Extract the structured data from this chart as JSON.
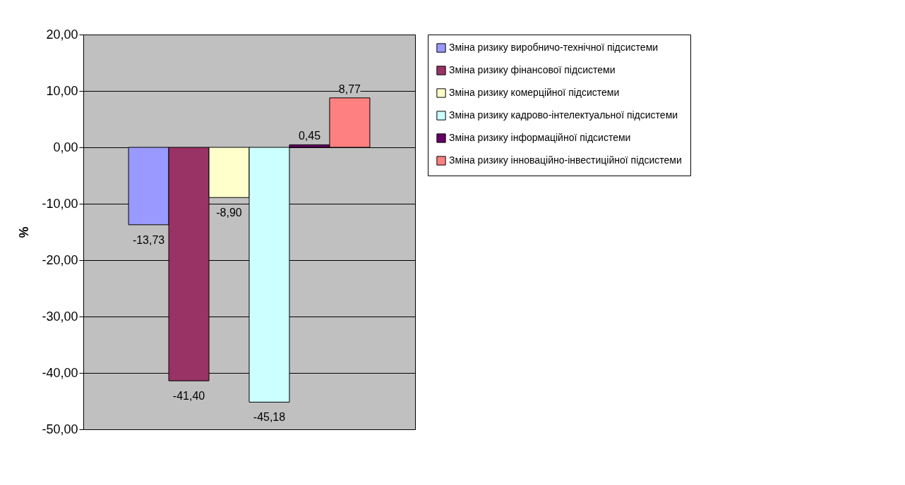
{
  "chart_data": {
    "type": "bar",
    "ylabel": "%",
    "categories": [
      null
    ],
    "series": [
      {
        "name": "Зміна ризику виробничо-технічної підсистеми",
        "color": "#9999ff",
        "values": [
          -13.73
        ],
        "value_labels": [
          "-13,73"
        ]
      },
      {
        "name": "Зміна ризику фінансової підсистеми",
        "color": "#993366",
        "values": [
          -41.4
        ],
        "value_labels": [
          "-41,40"
        ]
      },
      {
        "name": "Зміна ризику комерційної підсистеми",
        "color": "#ffffcc",
        "values": [
          -8.9
        ],
        "value_labels": [
          "-8,90"
        ]
      },
      {
        "name": "Зміна ризику кадрово-інтелектуальної підсистеми",
        "color": "#ccffff",
        "values": [
          -45.18
        ],
        "value_labels": [
          "-45,18"
        ]
      },
      {
        "name": "Зміна ризику інформаційної підсистеми",
        "color": "#660066",
        "values": [
          0.45
        ],
        "value_labels": [
          "0,45"
        ]
      },
      {
        "name": "Зміна ризику інноваційно-інвестиційної підсистеми",
        "color": "#ff8080",
        "values": [
          8.77
        ],
        "value_labels": [
          "8,77"
        ]
      }
    ],
    "ylim": [
      -50,
      20
    ],
    "yticks": [
      {
        "value": -50,
        "label": "-50,00"
      },
      {
        "value": -40,
        "label": "-40,00"
      },
      {
        "value": -30,
        "label": "-30,00"
      },
      {
        "value": -20,
        "label": "-20,00"
      },
      {
        "value": -10,
        "label": "-10,00"
      },
      {
        "value": 0,
        "label": "0,00"
      },
      {
        "value": 10,
        "label": "10,00"
      },
      {
        "value": 20,
        "label": "20,00"
      }
    ],
    "grid": "y",
    "legend": "right",
    "tick_labels": "y"
  }
}
